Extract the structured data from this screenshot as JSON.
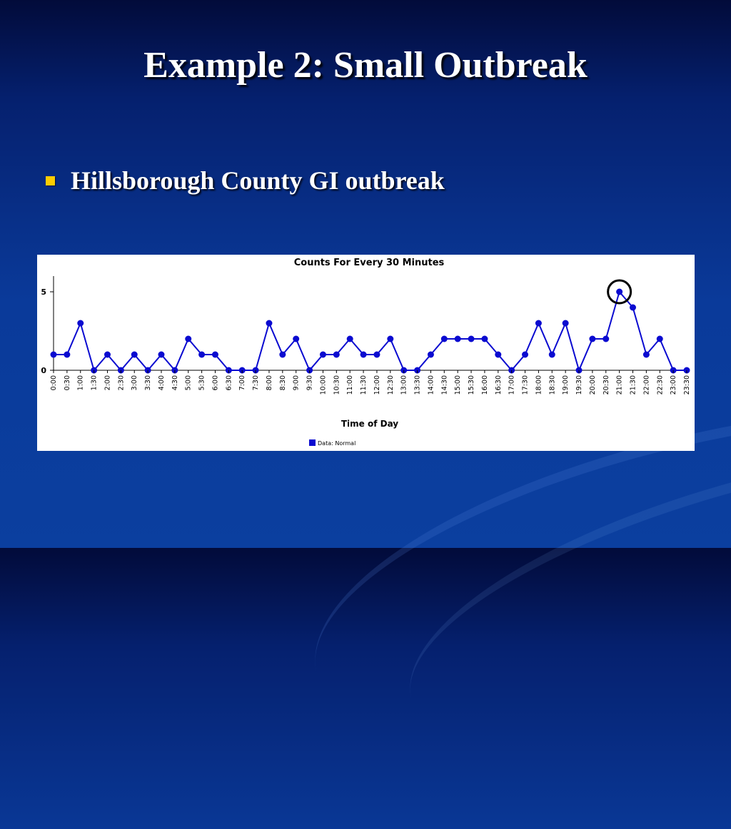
{
  "slide": {
    "title": "Example 2: Small Outbreak",
    "bullet": "Hillsborough County GI outbreak"
  },
  "colors": {
    "series": "#0a0ad0",
    "bullet": "#ffcc00",
    "highlight_circle": "#000000"
  },
  "chart_data": {
    "type": "line",
    "title": "Counts For Every 30 Minutes",
    "xlabel": "Time of Day",
    "ylabel": "",
    "ylim": [
      0,
      5
    ],
    "yticks": [
      0,
      5
    ],
    "grid": false,
    "legend_position": "bottom",
    "x": [
      "0:00",
      "0:30",
      "1:00",
      "1:30",
      "2:00",
      "2:30",
      "3:00",
      "3:30",
      "4:00",
      "4:30",
      "5:00",
      "5:30",
      "6:00",
      "6:30",
      "7:00",
      "7:30",
      "8:00",
      "8:30",
      "9:00",
      "9:30",
      "10:00",
      "10:30",
      "11:00",
      "11:30",
      "12:00",
      "12:30",
      "13:00",
      "13:30",
      "14:00",
      "14:30",
      "15:00",
      "15:30",
      "16:00",
      "16:30",
      "17:00",
      "17:30",
      "18:00",
      "18:30",
      "19:00",
      "19:30",
      "20:00",
      "20:30",
      "21:00",
      "21:30",
      "22:00",
      "22:30",
      "23:00",
      "23:30"
    ],
    "series": [
      {
        "name": "Data: Normal",
        "values": [
          1,
          1,
          3,
          0,
          1,
          0,
          1,
          0,
          1,
          0,
          2,
          1,
          1,
          0,
          0,
          0,
          3,
          1,
          2,
          0,
          1,
          1,
          2,
          1,
          1,
          2,
          0,
          0,
          1,
          2,
          2,
          2,
          2,
          1,
          0,
          1,
          3,
          1,
          3,
          0,
          2,
          2,
          5,
          4,
          1,
          2,
          0,
          0
        ]
      }
    ],
    "annotations": [
      {
        "type": "circle",
        "x": "21:00",
        "y": 5
      }
    ]
  }
}
